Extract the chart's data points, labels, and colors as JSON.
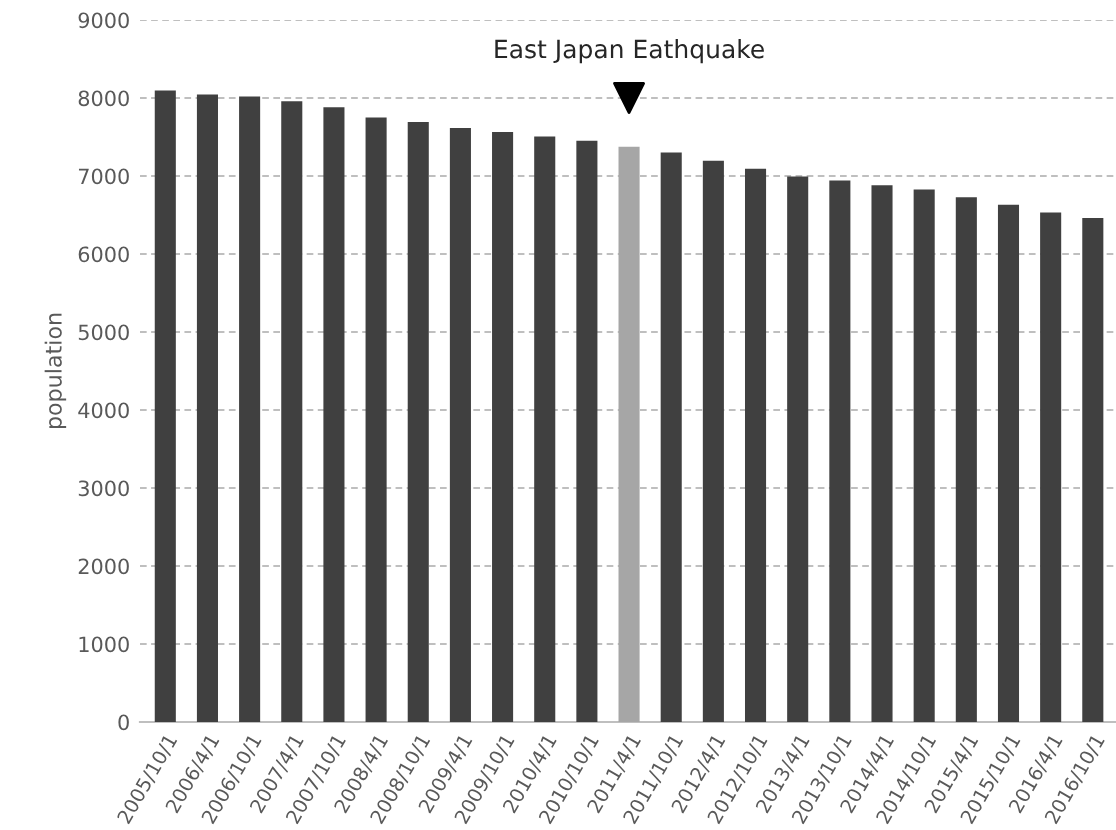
{
  "chart_data": {
    "type": "bar",
    "ylabel": "population",
    "categories": [
      "2005/10/1",
      "2006/4/1",
      "2006/10/1",
      "2007/4/1",
      "2007/10/1",
      "2008/4/1",
      "2008/10/1",
      "2009/4/1",
      "2009/10/1",
      "2010/4/1",
      "2010/10/1",
      "2011/4/1",
      "2011/10/1",
      "2012/4/1",
      "2012/10/1",
      "2013/4/1",
      "2013/10/1",
      "2014/4/1",
      "2014/10/1",
      "2015/4/1",
      "2015/10/1",
      "2016/4/1",
      "2016/10/1"
    ],
    "values": [
      8095,
      8044,
      8018,
      7957,
      7880,
      7751,
      7692,
      7615,
      7564,
      7505,
      7453,
      7376,
      7300,
      7197,
      7094,
      6992,
      6941,
      6880,
      6828,
      6726,
      6633,
      6531,
      6462
    ],
    "colors": [
      "#404040",
      "#404040",
      "#404040",
      "#404040",
      "#404040",
      "#404040",
      "#404040",
      "#404040",
      "#404040",
      "#404040",
      "#404040",
      "#a6a6a6",
      "#404040",
      "#404040",
      "#404040",
      "#404040",
      "#404040",
      "#404040",
      "#404040",
      "#404040",
      "#404040",
      "#404040",
      "#404040"
    ],
    "ylim": [
      0,
      9000
    ],
    "yticks": [
      0,
      1000,
      2000,
      3000,
      4000,
      5000,
      6000,
      7000,
      8000,
      9000
    ],
    "grid": "y",
    "annotations": [
      {
        "text": "East Japan Eathquake",
        "x": "2011/4/1",
        "y": 8000
      }
    ]
  }
}
